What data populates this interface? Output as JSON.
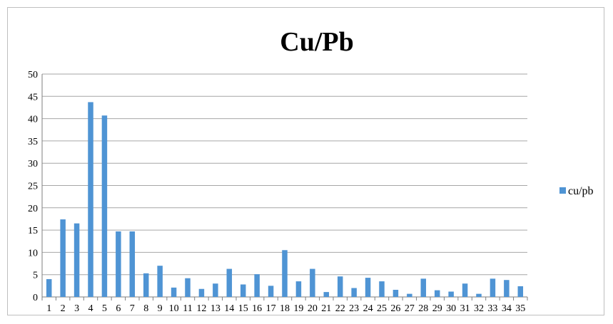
{
  "chart_data": {
    "type": "bar",
    "title": "Cu/Pb",
    "xlabel": "",
    "ylabel": "",
    "categories": [
      "1",
      "2",
      "3",
      "4",
      "5",
      "6",
      "7",
      "8",
      "9",
      "10",
      "11",
      "12",
      "13",
      "14",
      "15",
      "16",
      "17",
      "18",
      "19",
      "20",
      "21",
      "22",
      "23",
      "24",
      "25",
      "26",
      "27",
      "28",
      "29",
      "30",
      "31",
      "32",
      "33",
      "34",
      "35"
    ],
    "series": [
      {
        "name": "cu/pb",
        "color": "#4f94d4",
        "values": [
          4.0,
          17.4,
          16.5,
          43.7,
          40.7,
          14.7,
          14.7,
          5.3,
          7.0,
          2.1,
          4.2,
          1.8,
          3.0,
          6.3,
          2.8,
          5.1,
          2.5,
          10.5,
          3.5,
          6.3,
          1.1,
          4.6,
          2.0,
          4.3,
          3.5,
          1.6,
          0.7,
          4.1,
          1.5,
          1.2,
          3.0,
          0.7,
          4.1,
          3.8,
          2.4
        ]
      }
    ],
    "ylim": [
      0,
      50
    ],
    "yticks": [
      0,
      5,
      10,
      15,
      20,
      25,
      30,
      35,
      40,
      45,
      50
    ],
    "grid": true,
    "legend_position": "right"
  }
}
